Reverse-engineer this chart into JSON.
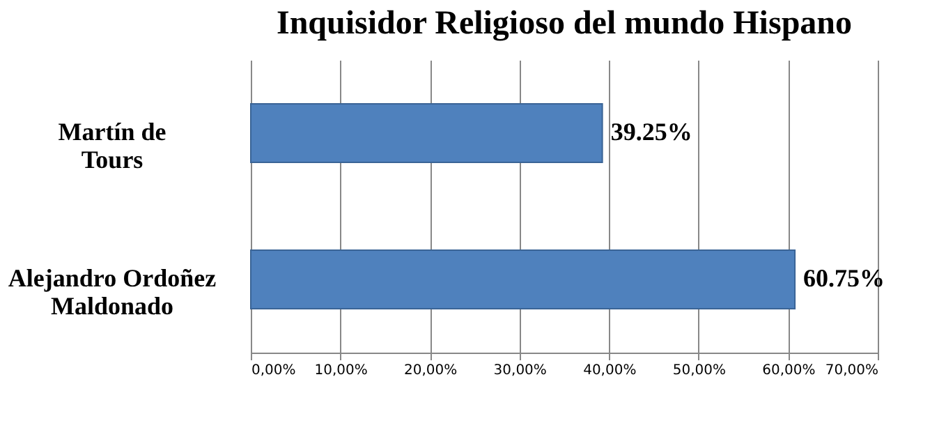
{
  "chart_data": {
    "type": "bar",
    "orientation": "horizontal",
    "title": "Inquisidor Religioso del mundo Hispano",
    "categories": [
      "Martín de Tours",
      "Alejandro Ordoñez Maldonado"
    ],
    "values": [
      39.25,
      60.75
    ],
    "value_labels": [
      "39.25%",
      "60.75%"
    ],
    "color": "#4f81bd",
    "xlim": [
      0,
      70
    ],
    "xticks": [
      {
        "value": 0,
        "label": "0,00%"
      },
      {
        "value": 10,
        "label": "10,00%"
      },
      {
        "value": 20,
        "label": "20,00%"
      },
      {
        "value": 30,
        "label": "30,00%"
      },
      {
        "value": 40,
        "label": "40,00%"
      },
      {
        "value": 50,
        "label": "50,00%"
      },
      {
        "value": 60,
        "label": "60,00%"
      },
      {
        "value": 70,
        "label": "70,00%"
      }
    ],
    "grid": "x"
  }
}
